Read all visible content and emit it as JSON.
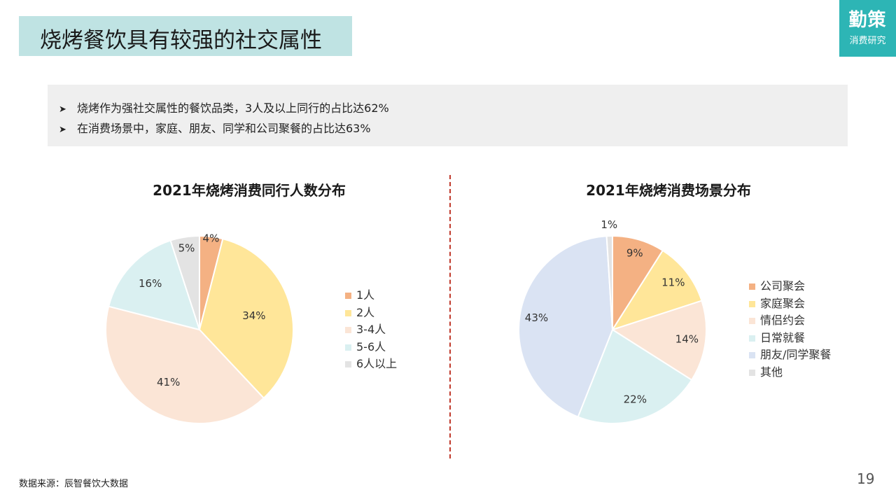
{
  "header": {
    "title": "烧烤餐饮具有较强的社交属性",
    "logo_main": "勤策",
    "logo_sub": "消费研究"
  },
  "summary": {
    "bullets": [
      "烧烤作为强社交属性的餐饮品类，3人及以上同行的占比达62%",
      "在消费场景中，家庭、朋友、同学和公司聚餐的占比达63%"
    ]
  },
  "chart_data": [
    {
      "type": "pie",
      "title": "2021年烧烤消费同行人数分布",
      "categories": [
        "1人",
        "2人",
        "3-4人",
        "5-6人",
        "6人以上"
      ],
      "values": [
        4,
        34,
        41,
        16,
        5
      ],
      "labels": [
        "4%",
        "34%",
        "41%",
        "16%",
        "5%"
      ],
      "colors": [
        "#f4b183",
        "#ffe699",
        "#fbe5d6",
        "#daf0f1",
        "#e3e3e3"
      ],
      "legend_position": "right"
    },
    {
      "type": "pie",
      "title": "2021年烧烤消费场景分布",
      "categories": [
        "公司聚会",
        "家庭聚会",
        "情侣约会",
        "日常就餐",
        "朋友/同学聚餐",
        "其他"
      ],
      "values": [
        9,
        11,
        14,
        22,
        43,
        1
      ],
      "labels": [
        "9%",
        "11%",
        "14%",
        "22%",
        "43%",
        "1%"
      ],
      "colors": [
        "#f4b183",
        "#ffe699",
        "#fbe5d6",
        "#daf0f1",
        "#dae3f3",
        "#e3e3e3"
      ],
      "legend_position": "right"
    }
  ],
  "footer": {
    "source": "数据来源：辰智餐饮大数据",
    "page": "19"
  }
}
